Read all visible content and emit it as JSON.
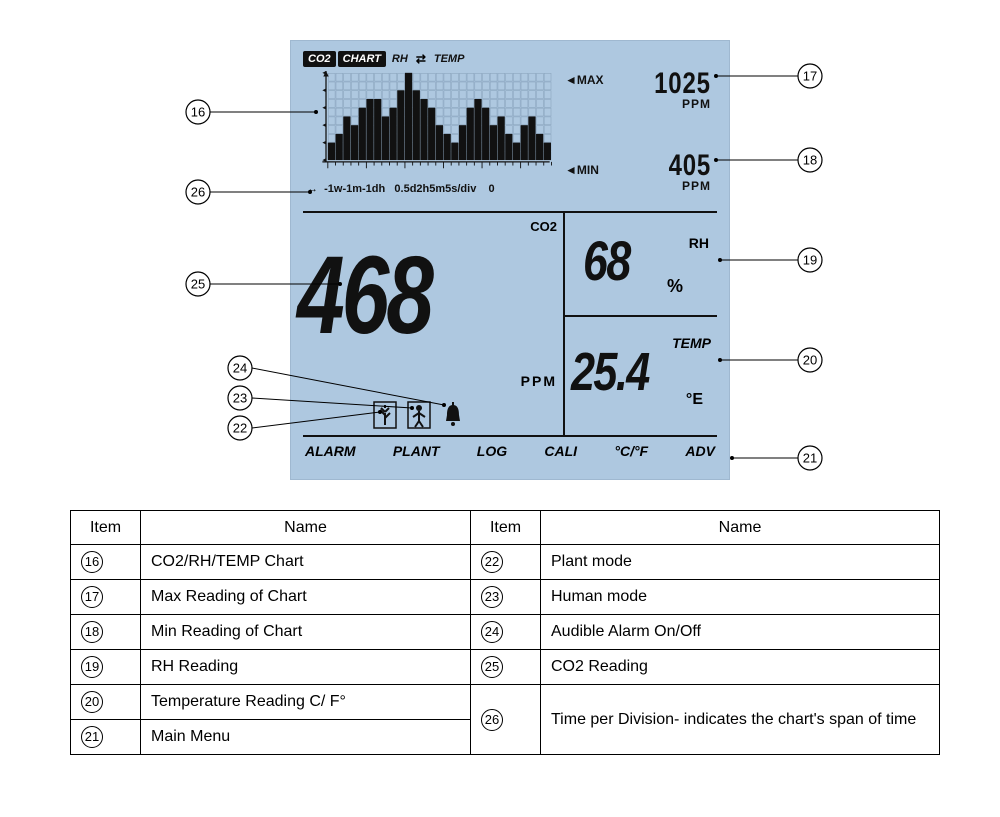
{
  "lcd": {
    "bg_color": "#aec8e0",
    "tabs": {
      "co2": "CO2",
      "chart": "CHART",
      "rh": "RH",
      "temp": "TEMP"
    },
    "chart": {
      "type": "bar",
      "bars": [
        2,
        3,
        5,
        4,
        6,
        7,
        7,
        5,
        6,
        8,
        10,
        8,
        7,
        6,
        4,
        3,
        2,
        4,
        6,
        7,
        6,
        4,
        5,
        3,
        2,
        4,
        5,
        3,
        2
      ],
      "max_bar": 10,
      "grid_cols": 29,
      "grid_rows": 10,
      "grid_color": "#8aa4bd",
      "bar_color": "#111111",
      "max_label": "MAX",
      "min_label": "MIN",
      "time_scale_text": "↔  -1w-1m-1dh   0.5d2h5m5s/div    0"
    },
    "max_reading": {
      "value": "1025",
      "unit": "PPM"
    },
    "min_reading": {
      "value": "405",
      "unit": "PPM"
    },
    "co2": {
      "label": "CO2",
      "value": "468",
      "unit": "PPM"
    },
    "rh": {
      "label": "RH",
      "value": "68",
      "unit": "%"
    },
    "temp": {
      "label": "TEMP",
      "value": "25.4",
      "unit": "°E"
    },
    "menu": {
      "alarm": "ALARM",
      "plant": "PLANT",
      "log": "LOG",
      "cali": "CALI",
      "cf": "°C/°F",
      "adv": "ADV"
    }
  },
  "callouts": {
    "c16": "16",
    "c17": "17",
    "c18": "18",
    "c19": "19",
    "c20": "20",
    "c21": "21",
    "c22": "22",
    "c23": "23",
    "c24": "24",
    "c25": "25",
    "c26": "26"
  },
  "table": {
    "headers": {
      "item": "Item",
      "name": "Name"
    },
    "left": [
      {
        "n": "16",
        "t": "CO2/RH/TEMP Chart"
      },
      {
        "n": "17",
        "t": "Max Reading of Chart"
      },
      {
        "n": "18",
        "t": "Min Reading of Chart"
      },
      {
        "n": "19",
        "t": "RH Reading"
      },
      {
        "n": "20",
        "t": "Temperature Reading C/ F°"
      },
      {
        "n": "21",
        "t": "Main Menu"
      }
    ],
    "right": [
      {
        "n": "22",
        "t": "Plant mode"
      },
      {
        "n": "23",
        "t": "Human mode"
      },
      {
        "n": "24",
        "t": "Audible Alarm On/Off"
      },
      {
        "n": "25",
        "t": "CO2 Reading"
      },
      {
        "n": "26",
        "t": "Time per Division- indicates the chart's span of time",
        "rowspan": 2
      }
    ]
  }
}
